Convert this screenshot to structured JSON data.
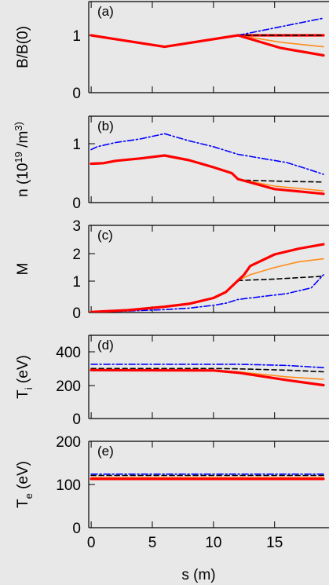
{
  "chart_data": [
    {
      "type": "line",
      "panel_label": "(a)",
      "ylabel": "B/B(0)",
      "ylim": [
        0,
        1.5
      ],
      "yticks": [
        0,
        1
      ],
      "series": [
        {
          "color": "#ff0000",
          "style": "solid",
          "x": [
            0,
            6,
            12,
            19
          ],
          "y": [
            1.0,
            0.8,
            1.0,
            1.0
          ]
        },
        {
          "color": "#0000ff",
          "style": "dashdot",
          "x": [
            12,
            19
          ],
          "y": [
            1.0,
            1.3
          ]
        },
        {
          "color": "#000000",
          "style": "dashed",
          "x": [
            12,
            19
          ],
          "y": [
            1.0,
            1.0
          ]
        },
        {
          "color": "#ff8c1a",
          "style": "solid",
          "x": [
            12,
            15.5,
            19
          ],
          "y": [
            1.0,
            0.88,
            0.8
          ]
        },
        {
          "color": "#ff0000",
          "style": "solid",
          "x": [
            12,
            15.5,
            19
          ],
          "y": [
            1.0,
            0.78,
            0.65
          ]
        }
      ]
    },
    {
      "type": "line",
      "panel_label": "(b)",
      "ylabel": "n (10^19 /m^3)",
      "ylim": [
        0,
        1.5
      ],
      "yticks": [
        0,
        1
      ],
      "series": [
        {
          "color": "#0000ff",
          "style": "dashdot",
          "x": [
            0,
            0.5,
            2,
            4,
            6,
            8,
            10,
            12,
            14,
            16,
            18,
            19
          ],
          "y": [
            0.9,
            0.95,
            1.02,
            1.08,
            1.17,
            1.05,
            0.95,
            0.82,
            0.75,
            0.68,
            0.55,
            0.48
          ]
        },
        {
          "color": "#ff0000",
          "style": "solid",
          "x": [
            0,
            1,
            2,
            4,
            6,
            8,
            10,
            11.5,
            12
          ],
          "y": [
            0.66,
            0.67,
            0.71,
            0.75,
            0.8,
            0.72,
            0.6,
            0.5,
            0.4
          ]
        },
        {
          "color": "#000000",
          "style": "dashed",
          "x": [
            12,
            12.5,
            16,
            19
          ],
          "y": [
            0.4,
            0.38,
            0.36,
            0.35
          ]
        },
        {
          "color": "#ff8c1a",
          "style": "solid",
          "x": [
            12,
            15,
            19
          ],
          "y": [
            0.4,
            0.28,
            0.2
          ]
        },
        {
          "color": "#ff0000",
          "style": "solid",
          "x": [
            12,
            15,
            19
          ],
          "y": [
            0.4,
            0.23,
            0.15
          ]
        }
      ]
    },
    {
      "type": "line",
      "panel_label": "(c)",
      "ylabel": "M",
      "ylim": [
        0,
        3
      ],
      "yticks": [
        0,
        1,
        2,
        3
      ],
      "series": [
        {
          "color": "#0000ff",
          "style": "dashdot",
          "x": [
            0,
            3,
            6,
            8,
            10,
            11,
            12,
            14,
            16,
            18,
            19
          ],
          "y": [
            0.02,
            0.05,
            0.1,
            0.15,
            0.25,
            0.32,
            0.45,
            0.55,
            0.65,
            0.85,
            1.3
          ]
        },
        {
          "color": "#ff0000",
          "style": "solid",
          "x": [
            0,
            3,
            6,
            8,
            10,
            11,
            12
          ],
          "y": [
            0.02,
            0.08,
            0.2,
            0.3,
            0.5,
            0.7,
            1.1
          ]
        },
        {
          "color": "#000000",
          "style": "dashed",
          "x": [
            12,
            13,
            15,
            17,
            19
          ],
          "y": [
            1.1,
            1.12,
            1.15,
            1.2,
            1.25
          ]
        },
        {
          "color": "#ff8c1a",
          "style": "solid",
          "x": [
            12,
            13,
            15,
            17,
            19
          ],
          "y": [
            1.1,
            1.3,
            1.55,
            1.75,
            1.85
          ]
        },
        {
          "color": "#ff0000",
          "style": "solid",
          "x": [
            12,
            12.5,
            13,
            15,
            17,
            19
          ],
          "y": [
            1.1,
            1.3,
            1.6,
            2.0,
            2.2,
            2.35
          ]
        }
      ]
    },
    {
      "type": "line",
      "panel_label": "(d)",
      "ylabel": "T_i (eV)",
      "ylim": [
        0,
        500
      ],
      "yticks": [
        0,
        200,
        400
      ],
      "series": [
        {
          "color": "#0000ff",
          "style": "dashdot",
          "x": [
            0,
            12,
            16,
            19
          ],
          "y": [
            325,
            325,
            318,
            305
          ]
        },
        {
          "color": "#000000",
          "style": "dashed",
          "x": [
            0,
            10,
            12,
            16,
            19
          ],
          "y": [
            300,
            300,
            298,
            290,
            280
          ]
        },
        {
          "color": "#ff8c1a",
          "style": "solid",
          "x": [
            0,
            10,
            12,
            16,
            19
          ],
          "y": [
            290,
            288,
            280,
            250,
            235
          ]
        },
        {
          "color": "#ff0000",
          "style": "solid",
          "x": [
            0,
            10,
            12,
            16,
            19
          ],
          "y": [
            290,
            288,
            275,
            230,
            200
          ]
        }
      ]
    },
    {
      "type": "line",
      "panel_label": "(e)",
      "ylabel": "T_e (eV)",
      "ylim": [
        0,
        200
      ],
      "yticks": [
        0,
        100,
        200
      ],
      "series": [
        {
          "color": "#0000ff",
          "style": "dashdot",
          "x": [
            0,
            19
          ],
          "y": [
            124,
            124
          ]
        },
        {
          "color": "#000000",
          "style": "dashed",
          "x": [
            0,
            19
          ],
          "y": [
            121,
            121
          ]
        },
        {
          "color": "#ff8c1a",
          "style": "solid",
          "x": [
            0,
            19
          ],
          "y": [
            116,
            116
          ]
        },
        {
          "color": "#ff0000",
          "style": "solid",
          "x": [
            0,
            19
          ],
          "y": [
            113,
            113
          ]
        }
      ]
    }
  ],
  "xaxis": {
    "label": "s (m)",
    "xlim": [
      -0.2,
      19
    ],
    "ticks": [
      0,
      5,
      10,
      15
    ]
  }
}
